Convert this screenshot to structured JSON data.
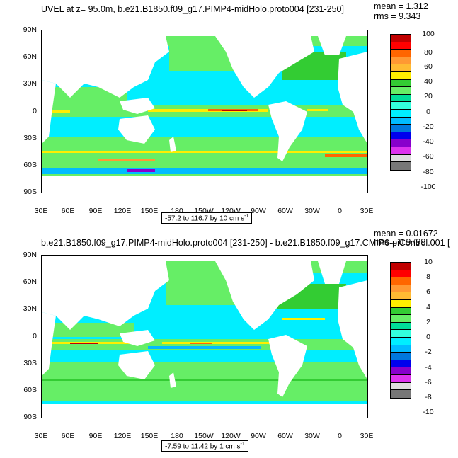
{
  "panels": [
    {
      "title": "UVEL at z=  95.0m, b.e21.B1850.f09_g17.PIMP4-midHolo.proto004 [231-250]",
      "mean": "mean = 1.312",
      "rms": "rms = 9.343",
      "range": "-57.2 to 116.7 by 10 cm s",
      "range_sup": "-1",
      "colorbar_labels": [
        "100",
        "80",
        "60",
        "40",
        "20",
        "0",
        "-20",
        "-40",
        "-60",
        "-80",
        "-100"
      ]
    },
    {
      "title": "b.e21.B1850.f09_g17.PIMP4-midHolo.proto004 [231-250] - b.e21.B1850.f09_g17.CMIP6-piControl.001 [",
      "mean": "mean = 0.01672",
      "rms": "rms = 0.9799",
      "range": "-7.59 to 11.42 by 1 cm s",
      "range_sup": "-1",
      "colorbar_labels": [
        "10",
        "8",
        "6",
        "4",
        "2",
        "0",
        "-2",
        "-4",
        "-6",
        "-8",
        "-10"
      ]
    }
  ],
  "lat_labels": [
    "90N",
    "60N",
    "30N",
    "0",
    "30S",
    "60S",
    "90S"
  ],
  "lon_labels": [
    "30E",
    "60E",
    "90E",
    "120E",
    "150E",
    "180",
    "150W",
    "120W",
    "90W",
    "60W",
    "30W",
    "0",
    "30E"
  ],
  "colorbar_colors": [
    "#c00000",
    "#ff0000",
    "#ff6600",
    "#ff9933",
    "#ffbb33",
    "#ffee00",
    "#33cc33",
    "#66ee66",
    "#00dd99",
    "#33ffdd",
    "#00eeff",
    "#00bbff",
    "#0077dd",
    "#0000ee",
    "#8800cc",
    "#dd33ee",
    "#dddddd",
    "#777777"
  ]
}
